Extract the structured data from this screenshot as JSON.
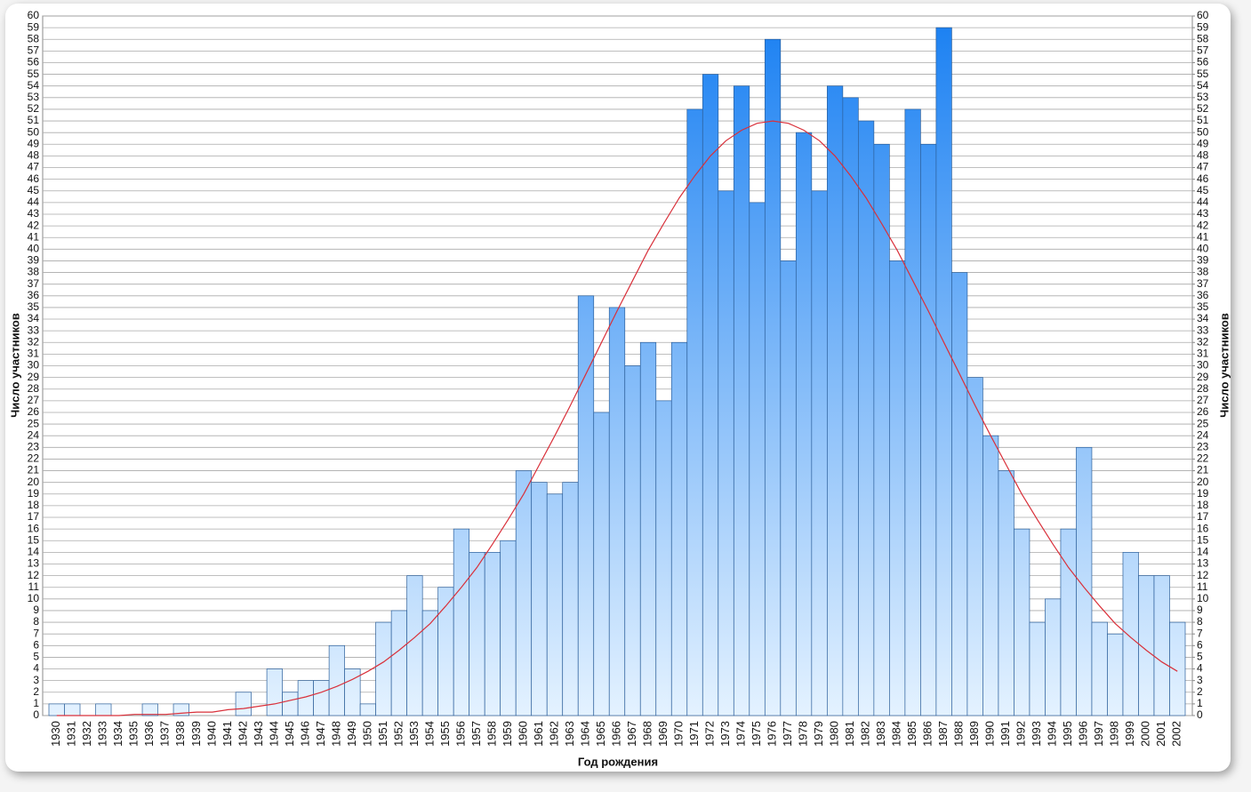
{
  "chart_data": {
    "type": "bar",
    "x_label": "Год рождения",
    "y_label": "Число участников",
    "y2_label": "Число участников",
    "categories": [
      "1930",
      "1931",
      "1932",
      "1933",
      "1934",
      "1935",
      "1936",
      "1937",
      "1938",
      "1939",
      "1940",
      "1941",
      "1942",
      "1943",
      "1944",
      "1945",
      "1946",
      "1947",
      "1948",
      "1949",
      "1950",
      "1951",
      "1952",
      "1953",
      "1954",
      "1955",
      "1956",
      "1957",
      "1958",
      "1959",
      "1960",
      "1961",
      "1962",
      "1963",
      "1964",
      "1965",
      "1966",
      "1967",
      "1968",
      "1969",
      "1970",
      "1971",
      "1972",
      "1973",
      "1974",
      "1975",
      "1976",
      "1977",
      "1978",
      "1979",
      "1980",
      "1981",
      "1982",
      "1983",
      "1984",
      "1985",
      "1986",
      "1987",
      "1988",
      "1989",
      "1990",
      "1991",
      "1992",
      "1993",
      "1994",
      "1995",
      "1996",
      "1997",
      "1998",
      "1999",
      "2000",
      "2001",
      "2002"
    ],
    "values": [
      1,
      1,
      0,
      1,
      0,
      0,
      1,
      0,
      1,
      0,
      0,
      0,
      2,
      0,
      4,
      2,
      3,
      3,
      6,
      4,
      1,
      8,
      9,
      12,
      9,
      11,
      16,
      14,
      14,
      15,
      21,
      20,
      19,
      20,
      36,
      26,
      35,
      30,
      32,
      27,
      32,
      52,
      55,
      45,
      54,
      44,
      58,
      39,
      50,
      45,
      54,
      53,
      51,
      49,
      39,
      52,
      49,
      59,
      38,
      29,
      24,
      21,
      16,
      8,
      10,
      16,
      23,
      8,
      7,
      14,
      12,
      12,
      8
    ],
    "color_top": "#1a80f2",
    "color_bottom": "#e4f2ff",
    "edge_color": "#2c5f9a",
    "curve": {
      "color": "#d9303a",
      "values": [
        0,
        0,
        0,
        0,
        0,
        0.1,
        0.1,
        0.1,
        0.2,
        0.3,
        0.3,
        0.5,
        0.6,
        0.8,
        1.0,
        1.3,
        1.6,
        2.0,
        2.5,
        3.1,
        3.8,
        4.6,
        5.6,
        6.7,
        7.9,
        9.4,
        11.0,
        12.7,
        14.7,
        16.8,
        19.0,
        21.5,
        24.0,
        26.6,
        29.3,
        32.0,
        34.7,
        37.3,
        39.9,
        42.2,
        44.4,
        46.3,
        48.0,
        49.3,
        50.2,
        50.8,
        51,
        50.8,
        50.2,
        49.3,
        48.0,
        46.3,
        44.4,
        42.2,
        39.9,
        37.3,
        34.7,
        32.0,
        29.3,
        26.6,
        24.0,
        21.5,
        19.0,
        16.8,
        14.7,
        12.7,
        11.0,
        9.4,
        7.9,
        6.7,
        5.6,
        4.6,
        3.8
      ]
    },
    "ylim": [
      0,
      60
    ],
    "yticks": [
      0,
      1,
      2,
      3,
      4,
      5,
      6,
      7,
      8,
      9,
      10,
      11,
      12,
      13,
      14,
      15,
      16,
      17,
      18,
      19,
      20,
      21,
      22,
      23,
      24,
      25,
      26,
      27,
      28,
      29,
      30,
      31,
      32,
      33,
      34,
      35,
      36,
      37,
      38,
      39,
      40,
      41,
      42,
      43,
      44,
      45,
      46,
      47,
      48,
      49,
      50,
      51,
      52,
      53,
      54,
      55,
      56,
      57,
      58,
      59,
      60
    ],
    "y2lim": [
      0,
      60
    ],
    "y2ticks": [
      0,
      1,
      2,
      3,
      4,
      5,
      6,
      7,
      8,
      9,
      10,
      11,
      12,
      13,
      14,
      15,
      16,
      17,
      18,
      19,
      20,
      21,
      22,
      23,
      24,
      25,
      26,
      27,
      28,
      29,
      30,
      31,
      32,
      33,
      34,
      35,
      36,
      37,
      38,
      39,
      40,
      41,
      42,
      43,
      44,
      45,
      46,
      47,
      48,
      49,
      50,
      51,
      52,
      53,
      54,
      55,
      56,
      57,
      58,
      59,
      60
    ],
    "grid": true
  }
}
